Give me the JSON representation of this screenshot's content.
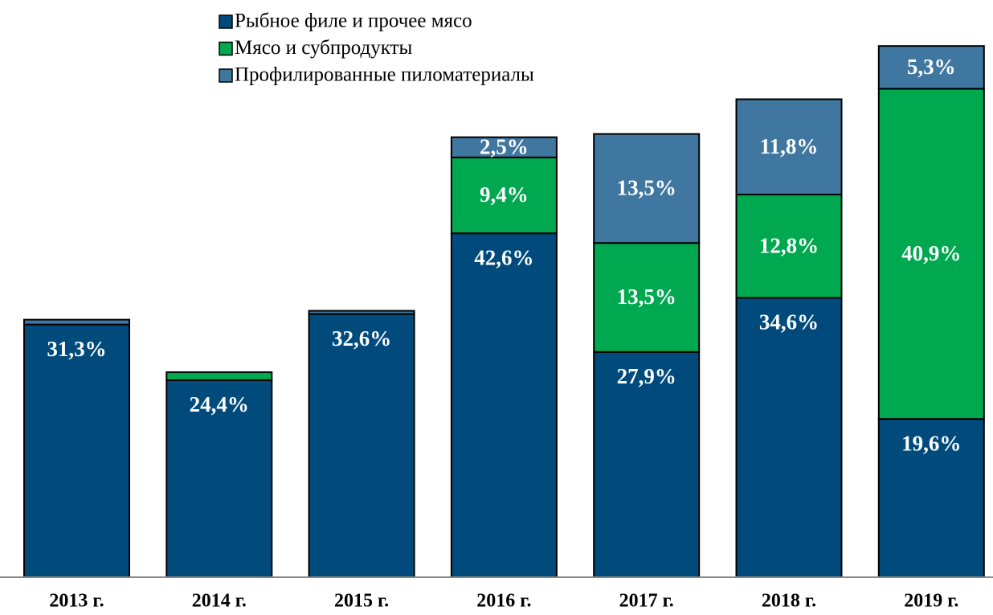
{
  "chart_data": {
    "type": "stacked_bar",
    "categories": [
      "2013 г.",
      "2014 г.",
      "2015 г.",
      "2016 г.",
      "2017 г.",
      "2018 г.",
      "2019 г."
    ],
    "series": [
      {
        "name": "Рыбное филе и прочее мясо",
        "color": "#004b7c",
        "values": [
          31.3,
          24.4,
          32.6,
          42.6,
          27.9,
          34.6,
          19.6
        ],
        "value_labels": [
          "31,3%",
          "24,4%",
          "32,6%",
          "42,6%",
          "27,9%",
          "34,6%",
          "19,6%"
        ]
      },
      {
        "name": "Мясо и субпродукты",
        "color": "#00a84f",
        "values": [
          0,
          1.0,
          0,
          9.4,
          13.5,
          12.8,
          40.9
        ],
        "value_labels": [
          null,
          null,
          null,
          "9,4%",
          "13,5%",
          "12,8%",
          "40,9%"
        ]
      },
      {
        "name": "Профилированные пиломатериалы",
        "color": "#3f77a0",
        "values": [
          0.6,
          0,
          0.4,
          2.5,
          13.5,
          11.8,
          5.3
        ],
        "value_labels": [
          null,
          null,
          null,
          "2,5%",
          "13,5%",
          "11,8%",
          "5,3%"
        ]
      }
    ],
    "ylim": [
      0,
      70
    ],
    "legend": "top-left"
  }
}
